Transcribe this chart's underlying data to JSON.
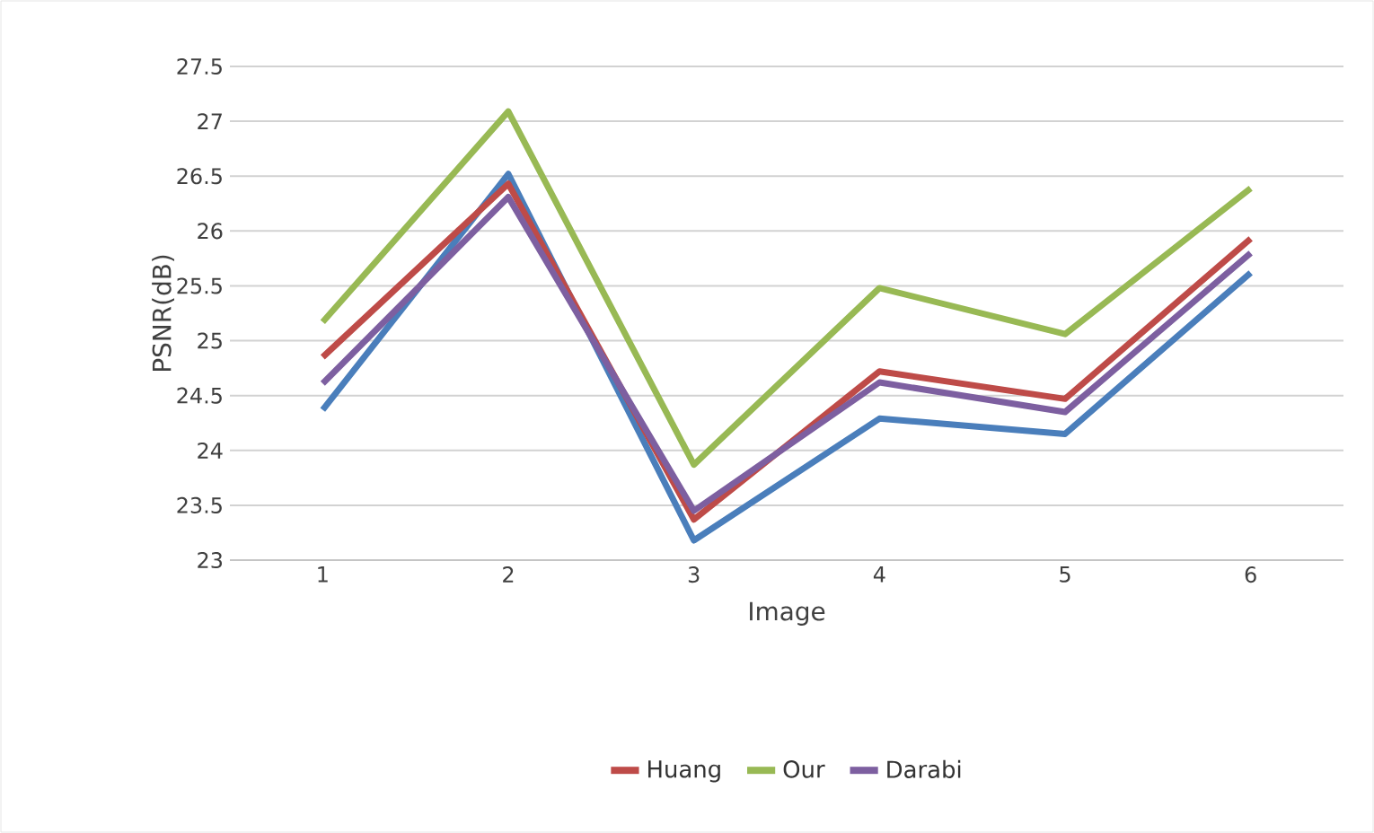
{
  "chart_data": {
    "type": "line",
    "xlabel": "Image",
    "ylabel": "PSNR(dB)",
    "categories": [
      "1",
      "2",
      "3",
      "4",
      "5",
      "6"
    ],
    "series": [
      {
        "color": "#4a7ebb",
        "values": [
          24.37,
          26.52,
          23.18,
          24.29,
          24.15,
          25.62
        ]
      },
      {
        "name": "Huang",
        "color": "#be4b48",
        "values": [
          24.85,
          26.43,
          23.37,
          24.72,
          24.47,
          25.93
        ]
      },
      {
        "name": "Our",
        "color": "#98b954",
        "values": [
          25.17,
          27.09,
          23.87,
          25.48,
          25.06,
          26.39
        ]
      },
      {
        "name": "Darabi",
        "color": "#7d5fa0",
        "values": [
          24.61,
          26.31,
          23.45,
          24.62,
          24.35,
          25.8
        ]
      }
    ],
    "ylim": [
      23,
      27.5
    ],
    "yticks": [
      23,
      23.5,
      24,
      24.5,
      25,
      25.5,
      26,
      26.5,
      27,
      27.5
    ],
    "grid": "y",
    "legend": "bottom",
    "marker": "none",
    "line_style": "solid"
  }
}
